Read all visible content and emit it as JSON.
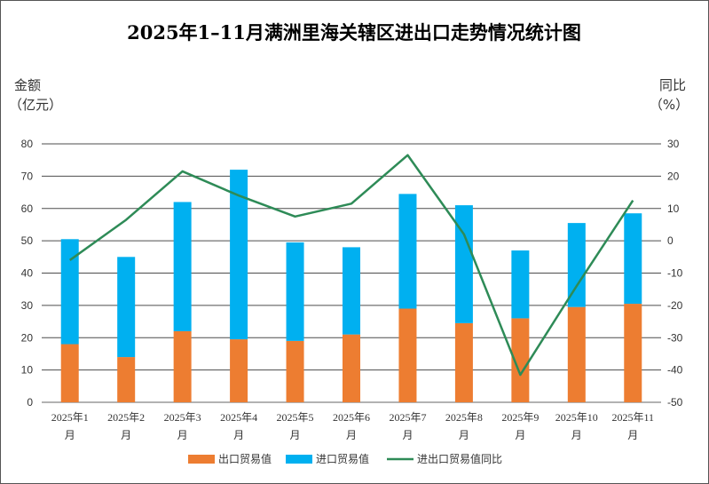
{
  "chart_data": {
    "type": "bar",
    "title": "2025年1–11月满洲里海关辖区进出口走势情况统计图",
    "ylabel_left_line1": "金额",
    "ylabel_left_line2": "（亿元）",
    "ylabel_right_line1": "同比",
    "ylabel_right_line2": "（%）",
    "categories": [
      [
        "2025年1",
        "月"
      ],
      [
        "2025年2",
        "月"
      ],
      [
        "2025年3",
        "月"
      ],
      [
        "2025年4",
        "月"
      ],
      [
        "2025年5",
        "月"
      ],
      [
        "2025年6",
        "月"
      ],
      [
        "2025年7",
        "月"
      ],
      [
        "2025年8",
        "月"
      ],
      [
        "2025年9",
        "月"
      ],
      [
        "2025年10",
        "月"
      ],
      [
        "2025年11",
        "月"
      ]
    ],
    "ylim_left": [
      0,
      80
    ],
    "ylim_right": [
      -50,
      30
    ],
    "yticks_left": [
      0,
      10,
      20,
      30,
      40,
      50,
      60,
      70,
      80
    ],
    "yticks_right": [
      -50,
      -40,
      -30,
      -20,
      -10,
      0,
      10,
      20,
      30
    ],
    "stacked": true,
    "grid": true,
    "legend_position": "bottom",
    "series": [
      {
        "name": "出口贸易值",
        "type": "bar",
        "axis": "left",
        "color": "#ED7D31",
        "values": [
          18,
          14,
          22,
          19.5,
          19,
          21,
          29,
          24.5,
          26,
          29.5,
          30.5
        ]
      },
      {
        "name": "进口贸易值",
        "type": "bar",
        "axis": "left",
        "color": "#00B0F0",
        "values": [
          32.5,
          31,
          40,
          52.5,
          30.5,
          27,
          35.5,
          36.5,
          21,
          26,
          28
        ]
      },
      {
        "name": "进出口贸易值同比",
        "type": "line",
        "axis": "right",
        "color": "#2E8B57",
        "values": [
          -6,
          6.5,
          21.5,
          14,
          7.5,
          11.5,
          26.5,
          2,
          -41.5,
          -14,
          12.5
        ]
      }
    ]
  }
}
